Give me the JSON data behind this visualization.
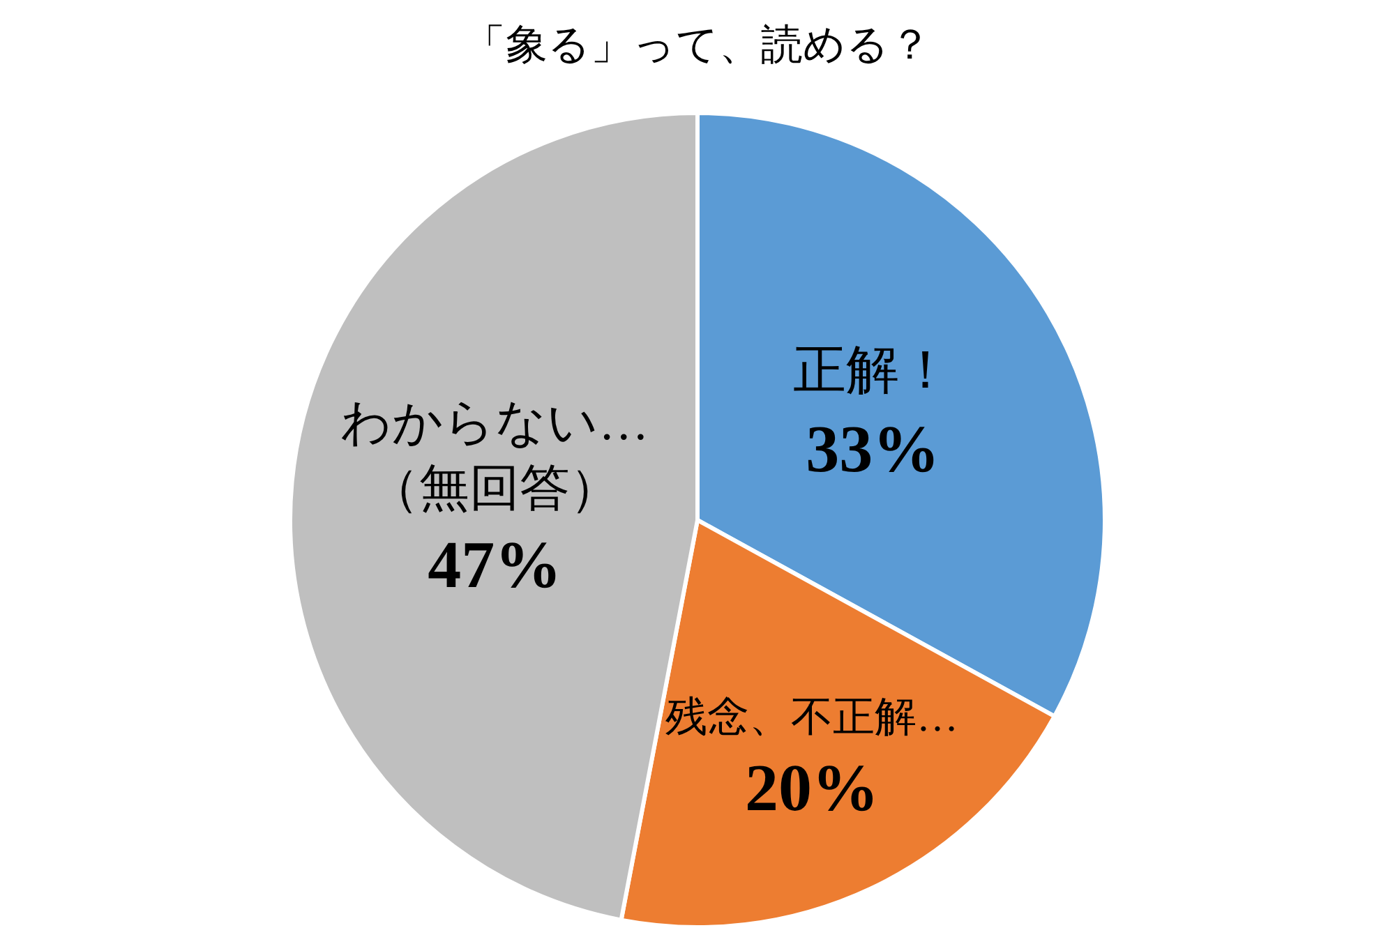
{
  "chart_data": {
    "type": "pie",
    "title": "「象る」って、読める？",
    "categories": [
      "正解！",
      "残念、不正解…",
      "わからない…（無回答）"
    ],
    "values": [
      33,
      20,
      47
    ],
    "colors": [
      "#5b9bd5",
      "#ed7d31",
      "#bfbfbf"
    ],
    "value_labels": [
      "33%",
      "20%",
      "47%"
    ]
  }
}
